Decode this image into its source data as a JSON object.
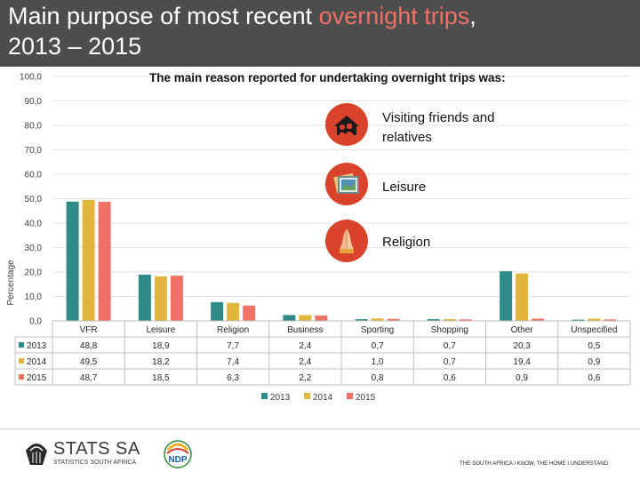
{
  "slide": {
    "title_line1_prefix": "Main purpose of most recent ",
    "title_line1_highlight": "overnight trips",
    "title_line1_suffix": ",",
    "title_line2": "2013 – 2015",
    "highlight_color": "#f07266"
  },
  "annotation": {
    "heading": "The main reason reported for undertaking  overnight trips was:",
    "reasons": [
      {
        "icon": "friends-house-icon",
        "label": "Visiting friends and relatives"
      },
      {
        "icon": "picture-frame-icon",
        "label": "Leisure"
      },
      {
        "icon": "praying-hands-icon",
        "label": "Religion"
      }
    ]
  },
  "chart_data": {
    "type": "bar",
    "ylabel": "Percentage",
    "ylim": [
      0,
      100
    ],
    "y_ticks": [
      "0,0",
      "10,0",
      "20,0",
      "30,0",
      "40,0",
      "50,0",
      "60,0",
      "70,0",
      "80,0",
      "90,0",
      "100,0"
    ],
    "categories": [
      "VFR",
      "Leisure",
      "Religion",
      "Business",
      "Sporting",
      "Shopping",
      "Other",
      "Unspecified"
    ],
    "series": [
      {
        "name": "2013",
        "color": "#2e8b88",
        "values": [
          48.8,
          18.9,
          7.7,
          2.4,
          0.7,
          0.7,
          20.3,
          0.5
        ],
        "labels": [
          "48,8",
          "18,9",
          "7,7",
          "2,4",
          "0,7",
          "0,7",
          "20,3",
          "0,5"
        ]
      },
      {
        "name": "2014",
        "color": "#e2b53c",
        "values": [
          49.5,
          18.2,
          7.4,
          2.4,
          1.0,
          0.7,
          19.4,
          0.9
        ],
        "labels": [
          "49,5",
          "18,2",
          "7,4",
          "2,4",
          "1,0",
          "0,7",
          "19,4",
          "0,9"
        ]
      },
      {
        "name": "2015",
        "color": "#f07266",
        "values": [
          48.7,
          18.5,
          6.3,
          2.2,
          0.8,
          0.6,
          0.9,
          0.6
        ],
        "labels": [
          "48,7",
          "18,5",
          "6,3",
          "2,2",
          "0,8",
          "0,6",
          "0,9",
          "0,6"
        ]
      }
    ],
    "grid": true,
    "data_table": true,
    "legend": "bottom"
  },
  "footer": {
    "logo_name": "STATS SA",
    "logo_subtitle": "STATISTICS SOUTH AFRICA",
    "ndp_logo_text": "NDP",
    "slogan": "THE SOUTH AFRICA I KNOW, THE HOME I UNDERSTAND"
  }
}
